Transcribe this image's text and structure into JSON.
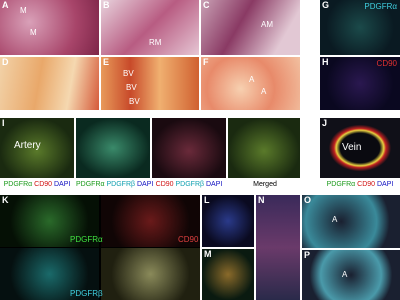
{
  "panels": [
    {
      "letter": "A",
      "labels": [
        "M",
        "M"
      ]
    },
    {
      "letter": "B",
      "labels": [
        "RM"
      ]
    },
    {
      "letter": "C",
      "labels": [
        "AM"
      ]
    },
    {
      "letter": "D"
    },
    {
      "letter": "E",
      "labels": [
        "BV",
        "BV",
        "BV"
      ]
    },
    {
      "letter": "F",
      "labels": [
        "A",
        "A"
      ]
    },
    {
      "letter": "G",
      "labels": [
        "PDGFRα"
      ]
    },
    {
      "letter": "H",
      "labels": [
        "CD90"
      ]
    },
    {
      "letter": "I",
      "labels": [
        "Artery"
      ]
    },
    {
      "letter": "J",
      "labels": [
        "Vein"
      ]
    },
    {
      "letter": "K",
      "labels": [
        "PDGFRα",
        "CD90",
        "PDGFRβ"
      ]
    },
    {
      "letter": "L"
    },
    {
      "letter": "M"
    },
    {
      "letter": "N"
    },
    {
      "letter": "O",
      "labels": [
        "A"
      ]
    },
    {
      "letter": "P",
      "labels": [
        "A"
      ]
    }
  ],
  "captions": {
    "I": [
      [
        "PDGFRα",
        "CD90",
        "DAPI"
      ],
      [
        "PDGFRα",
        "PDGFRβ",
        "DAPI"
      ],
      [
        "CD90",
        "PDGFRβ",
        "DAPI"
      ],
      [
        "Merged"
      ]
    ],
    "J": [
      "PDGFRα",
      "CD90",
      "DAPI"
    ]
  }
}
